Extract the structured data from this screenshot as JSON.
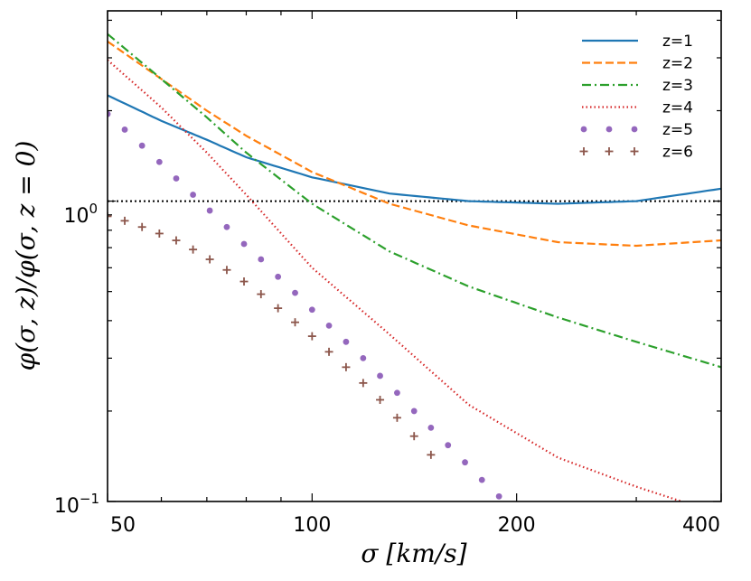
{
  "chart_data": {
    "type": "line",
    "title": "",
    "xlabel": "σ  [km/s]",
    "ylabel": "φ(σ, z)/φ(σ, z = 0)",
    "xscale": "log",
    "yscale": "log",
    "xlim": [
      50,
      400
    ],
    "ylim": [
      0.1,
      4.3
    ],
    "x_ticks": [
      {
        "value": 50,
        "label": "50"
      },
      {
        "value": 100,
        "label": "100"
      },
      {
        "value": 200,
        "label": "200"
      },
      {
        "value": 400,
        "label": "400"
      }
    ],
    "y_ticks": [
      {
        "value": 0.1,
        "base": "10",
        "exp": "−1"
      },
      {
        "value": 1,
        "base": "10",
        "exp": "0"
      }
    ],
    "reference_line": {
      "y": 1.0,
      "style": "dotted",
      "color": "#000000"
    },
    "legend_position": "top-right",
    "series": [
      {
        "name": "z=1",
        "color": "#1f77b4",
        "style": "solid",
        "x": [
          50,
          60,
          70,
          80,
          100,
          130,
          170,
          230,
          300,
          400
        ],
        "y": [
          2.25,
          1.85,
          1.6,
          1.4,
          1.2,
          1.06,
          1.0,
          0.98,
          1.0,
          1.1
        ]
      },
      {
        "name": "z=2",
        "color": "#ff7f0e",
        "style": "dashed",
        "x": [
          50,
          60,
          70,
          80,
          100,
          130,
          170,
          230,
          300,
          400
        ],
        "y": [
          3.4,
          2.55,
          2.0,
          1.65,
          1.25,
          0.98,
          0.83,
          0.73,
          0.71,
          0.74
        ]
      },
      {
        "name": "z=3",
        "color": "#2ca02c",
        "style": "dashdot",
        "x": [
          50,
          60,
          70,
          80,
          100,
          130,
          170,
          230,
          300,
          400
        ],
        "y": [
          3.6,
          2.55,
          1.9,
          1.45,
          0.98,
          0.68,
          0.52,
          0.41,
          0.34,
          0.28
        ]
      },
      {
        "name": "z=4",
        "color": "#d62728",
        "style": "dotted",
        "x": [
          50,
          60,
          70,
          80,
          100,
          130,
          170,
          230,
          300,
          350
        ],
        "y": [
          2.95,
          2.05,
          1.45,
          1.05,
          0.6,
          0.36,
          0.21,
          0.14,
          0.112,
          0.1
        ]
      },
      {
        "name": "z=5",
        "color": "#9467bd",
        "style": "dots",
        "x": [
          50,
          53,
          56.2,
          59.6,
          63.1,
          66.8,
          70.7,
          74.9,
          79.4,
          84.1,
          89.1,
          94.4,
          100,
          105.9,
          112.2,
          118.9,
          125.9,
          133.4,
          141.3,
          149.6,
          158.5,
          167.9,
          177.8,
          188.4
        ],
        "y": [
          1.95,
          1.73,
          1.53,
          1.35,
          1.19,
          1.05,
          0.93,
          0.82,
          0.72,
          0.64,
          0.56,
          0.495,
          0.435,
          0.385,
          0.34,
          0.3,
          0.262,
          0.23,
          0.2,
          0.176,
          0.154,
          0.135,
          0.118,
          0.104
        ]
      },
      {
        "name": "z=6",
        "color": "#8c564b",
        "style": "plus",
        "x": [
          50,
          53,
          56.2,
          59.6,
          63.1,
          66.8,
          70.7,
          74.9,
          79.4,
          84.1,
          89.1,
          94.4,
          100,
          105.9,
          112.2,
          118.9,
          125.9,
          133.4,
          141.3,
          149.6
        ],
        "y": [
          0.89,
          0.86,
          0.82,
          0.78,
          0.74,
          0.69,
          0.64,
          0.59,
          0.54,
          0.49,
          0.44,
          0.395,
          0.355,
          0.315,
          0.28,
          0.248,
          0.218,
          0.19,
          0.165,
          0.143
        ]
      }
    ]
  }
}
